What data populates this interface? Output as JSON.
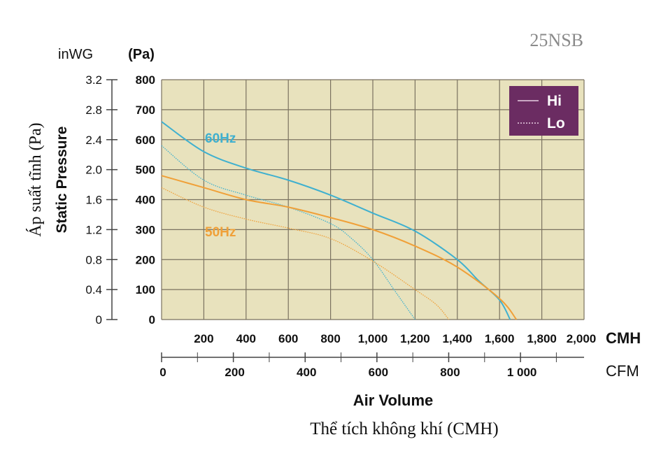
{
  "chart_data": {
    "type": "line",
    "model": "25NSB",
    "xlabel_en": "Air Volume",
    "xlabel_vi": "Thể tích không khí (CMH)",
    "ylabel_en": "Static Pressure",
    "ylabel_vi": "Áp suất tĩnh (Pa)",
    "y_unit_pa": "(Pa)",
    "y_unit_inwg": "inWG",
    "x_unit_cmh": "CMH",
    "x_unit_cfm": "CFM",
    "xlim": [
      0,
      2000
    ],
    "ylim": [
      0,
      800
    ],
    "x_ticks_cmh": [
      "200",
      "400",
      "600",
      "800",
      "1,000",
      "1,200",
      "1,400",
      "1,600",
      "1,800",
      "2,000"
    ],
    "x_ticks_cfm": [
      "0",
      "200",
      "400",
      "600",
      "800",
      "1 000"
    ],
    "y_ticks_pa": [
      "0",
      "100",
      "200",
      "300",
      "400",
      "500",
      "600",
      "700",
      "800"
    ],
    "y_ticks_inwg": [
      "0",
      "0.4",
      "0.8",
      "1.2",
      "1.6",
      "2.0",
      "2.4",
      "2.8",
      "3.2"
    ],
    "grid": true,
    "legend": {
      "position": "top-right",
      "entries": [
        "Hi",
        "Lo"
      ]
    },
    "annotations": [
      "60Hz",
      "50Hz"
    ],
    "colors": {
      "hz60": "#3fb0cf",
      "hz50": "#f0a038",
      "plot_bg": "#e8e2bd",
      "legend_bg": "#6b2c62",
      "grid": "#7a7260"
    },
    "series": [
      {
        "name": "Hi",
        "frequency": "60Hz",
        "style": "solid",
        "x": [
          0,
          200,
          400,
          600,
          800,
          1000,
          1200,
          1400,
          1500,
          1600,
          1650
        ],
        "y": [
          660,
          560,
          505,
          465,
          415,
          355,
          295,
          200,
          130,
          65,
          0
        ]
      },
      {
        "name": "Lo",
        "frequency": "60Hz",
        "style": "dotted",
        "x": [
          0,
          200,
          400,
          600,
          800,
          900,
          1000,
          1100,
          1160,
          1200
        ],
        "y": [
          580,
          465,
          415,
          375,
          320,
          270,
          200,
          100,
          40,
          0
        ]
      },
      {
        "name": "Hi",
        "frequency": "50Hz",
        "style": "solid",
        "x": [
          0,
          200,
          400,
          600,
          800,
          1000,
          1200,
          1400,
          1600,
          1680
        ],
        "y": [
          480,
          440,
          400,
          375,
          340,
          300,
          245,
          175,
          70,
          0
        ]
      },
      {
        "name": "Lo",
        "frequency": "50Hz",
        "style": "dotted",
        "x": [
          0,
          200,
          400,
          600,
          800,
          1000,
          1200,
          1300,
          1360
        ],
        "y": [
          440,
          375,
          335,
          305,
          270,
          195,
          100,
          50,
          0
        ]
      }
    ]
  }
}
